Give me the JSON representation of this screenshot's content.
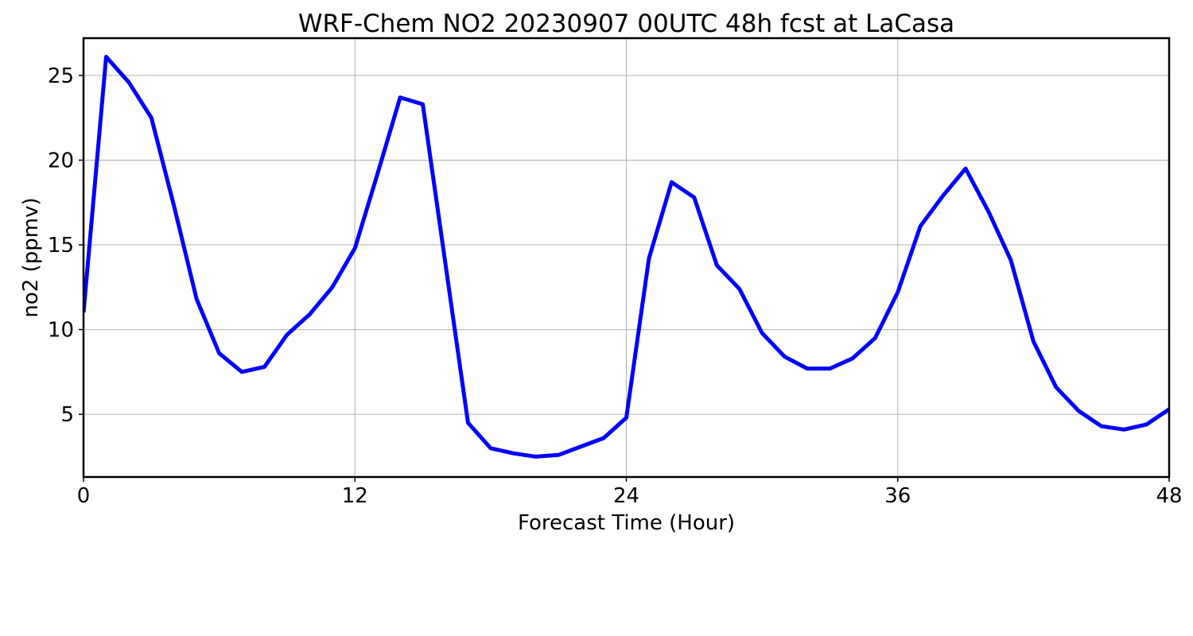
{
  "chart_data": {
    "type": "line",
    "title": "WRF-Chem NO2  20230907 00UTC 48h fcst at LaCasa",
    "xlabel": "Forecast Time (Hour)",
    "ylabel": "no2  (ppmv)",
    "xlim": [
      0,
      48
    ],
    "ylim": [
      1.3,
      27.2
    ],
    "xticks": [
      0,
      12,
      24,
      36,
      48
    ],
    "yticks": [
      5,
      10,
      15,
      20,
      25
    ],
    "grid": true,
    "legend": "none",
    "series": [
      {
        "color": "#0000ff",
        "x": [
          0,
          1,
          2,
          3,
          4,
          5,
          6,
          7,
          8,
          9,
          10,
          11,
          12,
          13,
          14,
          15,
          16,
          17,
          18,
          19,
          20,
          21,
          22,
          23,
          24,
          25,
          26,
          27,
          28,
          29,
          30,
          31,
          32,
          33,
          34,
          35,
          36,
          37,
          38,
          39,
          40,
          41,
          42,
          43,
          44,
          45,
          46,
          47,
          48
        ],
        "y": [
          11.0,
          26.1,
          24.6,
          22.5,
          17.3,
          11.8,
          8.6,
          7.5,
          7.8,
          9.7,
          10.9,
          12.5,
          14.8,
          19.2,
          23.7,
          23.3,
          13.9,
          4.5,
          3.0,
          2.7,
          2.5,
          2.6,
          3.1,
          3.6,
          4.8,
          14.2,
          18.7,
          17.8,
          13.8,
          12.4,
          9.8,
          8.4,
          7.7,
          7.7,
          8.3,
          9.5,
          12.2,
          16.1,
          17.9,
          19.5,
          17.0,
          14.1,
          9.3,
          6.6,
          5.2,
          4.3,
          4.1,
          4.4,
          5.3
        ]
      }
    ]
  }
}
